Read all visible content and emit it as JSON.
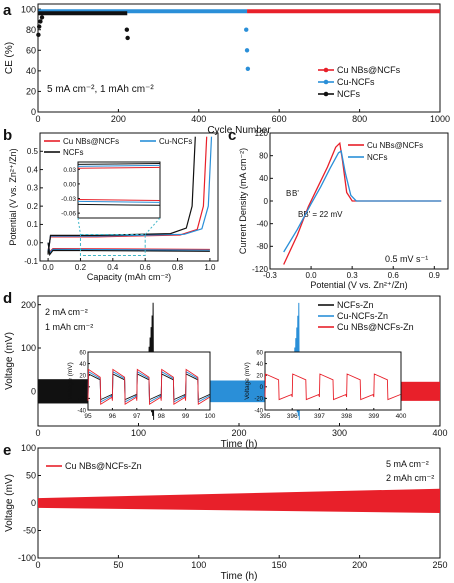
{
  "panels": {
    "a": {
      "letter": "a",
      "condition": "5 mA cm⁻², 1 mAh cm⁻²"
    },
    "b": {
      "letter": "b"
    },
    "c": {
      "letter": "c",
      "rate": "0.5 mV s⁻¹",
      "bb_label_b": "B",
      "bb_label_bprime": "B'",
      "bb_text": "BB' = 22 mV"
    },
    "d": {
      "letter": "d",
      "condition_1": "2 mA cm⁻²",
      "condition_2": "1 mAh cm⁻²"
    },
    "e": {
      "letter": "e",
      "condition_1": "5 mA cm⁻²",
      "condition_2": "2 mAh cm⁻²"
    }
  },
  "colors": {
    "red": "#e8202a",
    "blue": "#2a8fd8",
    "black": "#111111",
    "cyan_box": "#3fb6c8"
  },
  "chart_data": [
    {
      "id": "a",
      "type": "scatter",
      "xlabel": "Cycle Number",
      "ylabel": "CE (%)",
      "xlim": [
        0,
        1000
      ],
      "ylim": [
        0,
        105
      ],
      "xticks": [
        0,
        200,
        400,
        600,
        800,
        1000
      ],
      "yticks": [
        0,
        20,
        40,
        60,
        80,
        100
      ],
      "legend_position": "bottom-right",
      "series": [
        {
          "name": "Cu NBs@NCFs",
          "color": "#e8202a",
          "segments": [
            {
              "x": [
                520,
                1000
              ],
              "y": [
                98,
                98
              ]
            }
          ]
        },
        {
          "name": "Cu-NCFs",
          "color": "#2a8fd8",
          "segments": [
            {
              "x": [
                1,
                520
              ],
              "y": [
                98,
                98
              ]
            }
          ],
          "failure": [
            [
              518,
              80
            ],
            [
              520,
              60
            ],
            [
              522,
              42
            ]
          ]
        },
        {
          "name": "NCFs",
          "color": "#111111",
          "segments": [
            {
              "x": [
                1,
                222
              ],
              "y": [
                96,
                96
              ]
            }
          ],
          "start": [
            [
              1,
              75
            ],
            [
              3,
              83
            ],
            [
              6,
              88
            ],
            [
              10,
              92
            ]
          ],
          "failure": [
            [
              221,
              80
            ],
            [
              223,
              72
            ]
          ]
        }
      ]
    },
    {
      "id": "b",
      "type": "line",
      "xlabel": "Capacity (mAh cm⁻²)",
      "ylabel": "Potential (V vs. Zn²⁺/Zn)",
      "xlim": [
        -0.05,
        1.05
      ],
      "ylim": [
        -0.1,
        0.6
      ],
      "xticks": [
        0.0,
        0.2,
        0.4,
        0.6,
        0.8,
        1.0
      ],
      "yticks": [
        -0.1,
        0.0,
        0.1,
        0.2,
        0.3,
        0.4,
        0.5
      ],
      "inset": {
        "xlim": [
          0.2,
          0.6
        ],
        "ylim": [
          -0.07,
          0.045
        ],
        "yticks": [
          0.03,
          0.0,
          -0.03,
          -0.06
        ]
      },
      "series": [
        {
          "name": "Cu NBs@NCFs",
          "color": "#e8202a",
          "charge_end": 0.96,
          "charge_plateau": 0.032,
          "discharge_plateau": -0.032,
          "dip": -0.05
        },
        {
          "name": "Cu-NCFs",
          "color": "#2a8fd8",
          "charge_end": 0.99,
          "charge_plateau": 0.036,
          "discharge_plateau": -0.036,
          "dip": -0.055
        },
        {
          "name": "NCFs",
          "color": "#111111",
          "charge_end": 0.89,
          "charge_plateau": 0.04,
          "discharge_plateau": -0.042,
          "dip": -0.065
        }
      ]
    },
    {
      "id": "c",
      "type": "line",
      "xlabel": "Potential (V vs. Zn²⁺/Zn)",
      "ylabel": "Current Density (mA cm⁻²)",
      "xlim": [
        -0.3,
        1.0
      ],
      "ylim": [
        -120,
        120
      ],
      "xticks": [
        -0.3,
        0.0,
        0.3,
        0.6,
        0.9
      ],
      "yticks": [
        -120,
        -80,
        -40,
        0,
        40,
        80,
        120
      ],
      "series": [
        {
          "name": "Cu NBs@NCFs",
          "color": "#e8202a",
          "points": [
            [
              -0.2,
              -112
            ],
            [
              -0.1,
              -60
            ],
            [
              -0.02,
              -10
            ],
            [
              0.05,
              25
            ],
            [
              0.12,
              60
            ],
            [
              0.18,
              95
            ],
            [
              0.21,
              102
            ],
            [
              0.23,
              70
            ],
            [
              0.26,
              15
            ],
            [
              0.3,
              0
            ],
            [
              0.95,
              0
            ]
          ]
        },
        {
          "name": "NCFs",
          "color": "#2a8fd8",
          "points": [
            [
              -0.2,
              -90
            ],
            [
              -0.1,
              -50
            ],
            [
              0.0,
              -5
            ],
            [
              0.07,
              25
            ],
            [
              0.14,
              58
            ],
            [
              0.2,
              85
            ],
            [
              0.22,
              88
            ],
            [
              0.25,
              50
            ],
            [
              0.29,
              10
            ],
            [
              0.33,
              0
            ],
            [
              0.95,
              0
            ]
          ]
        }
      ]
    },
    {
      "id": "d",
      "type": "line",
      "xlabel": "Time (h)",
      "ylabel": "Voltage (mV)",
      "xlim": [
        0,
        400
      ],
      "ylim": [
        -80,
        220
      ],
      "xticks": [
        0,
        100,
        200,
        300,
        400
      ],
      "yticks": [
        0,
        100,
        200
      ],
      "legend_position": "top-right",
      "series": [
        {
          "name": "NCFs-Zn",
          "color": "#111111",
          "end_h": 115,
          "amplitude": 28
        },
        {
          "name": "Cu-NCFs-Zn",
          "color": "#2a8fd8",
          "end_h": 260,
          "amplitude": 25
        },
        {
          "name": "Cu NBs@NCFs-Zn",
          "color": "#e8202a",
          "end_h": 405,
          "amplitude": 22
        }
      ],
      "insets": [
        {
          "xlim": [
            95,
            100
          ],
          "ylim": [
            -40,
            60
          ],
          "xticks": [
            95,
            96,
            97,
            98,
            99,
            100
          ],
          "yticks": [
            -40,
            -20,
            0,
            20,
            40,
            60
          ],
          "xlabel": "",
          "ylabel": "Voltage (mV)"
        },
        {
          "xlim": [
            395,
            400
          ],
          "ylim": [
            -40,
            60
          ],
          "xticks": [
            395,
            396,
            397,
            398,
            399,
            400
          ],
          "yticks": [
            -40,
            -20,
            0,
            20,
            40,
            60
          ],
          "xlabel": "",
          "ylabel": "Voltage (mV)"
        }
      ]
    },
    {
      "id": "e",
      "type": "line",
      "xlabel": "Time (h)",
      "ylabel": "Voltage (mV)",
      "xlim": [
        0,
        250
      ],
      "ylim": [
        -100,
        100
      ],
      "xticks": [
        0,
        50,
        100,
        150,
        200,
        250
      ],
      "yticks": [
        -100,
        -50,
        0,
        50,
        100
      ],
      "legend_position": "top-left",
      "series": [
        {
          "name": "Cu NBs@NCFs-Zn",
          "color": "#e8202a",
          "amplitude_start": 9,
          "amplitude_end": 26
        }
      ]
    }
  ]
}
